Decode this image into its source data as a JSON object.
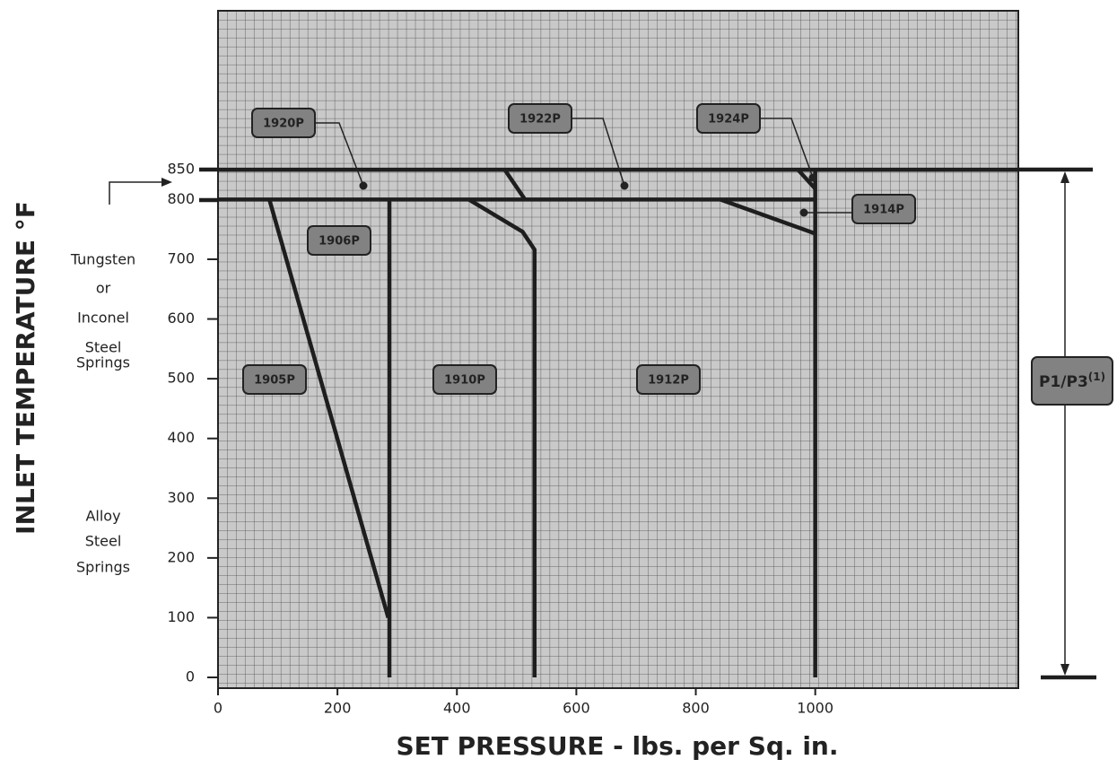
{
  "chart_data": {
    "type": "line",
    "x_label": "SET PRESSURE - lbs. per Sq. in.",
    "y_label": "INLET TEMPERATURE °F",
    "xlim": [
      0,
      1340
    ],
    "ylim": [
      -18,
      1116
    ],
    "xticks": [
      0,
      200,
      400,
      600,
      800,
      1000
    ],
    "yticks": [
      0,
      100,
      200,
      300,
      400,
      500,
      600,
      700,
      800,
      850
    ],
    "color": "#1e1e1e",
    "series": [
      {
        "x": [
          0,
          1340
        ],
        "values": [
          850,
          850
        ]
      },
      {
        "x": [
          0,
          1000
        ],
        "values": [
          800,
          800
        ]
      },
      {
        "x": [
          86,
          285
        ],
        "values": [
          800,
          100
        ]
      },
      {
        "x": [
          287,
          287
        ],
        "values": [
          0,
          800
        ]
      },
      {
        "x": [
          530,
          530,
          510,
          420
        ],
        "values": [
          0,
          716,
          746,
          800
        ]
      },
      {
        "x": [
          480,
          514
        ],
        "values": [
          850,
          800
        ]
      },
      {
        "x": [
          1000,
          1000
        ],
        "values": [
          0,
          850
        ]
      },
      {
        "x": [
          841,
          1000
        ],
        "values": [
          800,
          743
        ]
      },
      {
        "x": [
          971,
          1000
        ],
        "values": [
          850,
          818
        ]
      }
    ],
    "labels": [
      "1920P",
      "1922P",
      "1924P",
      "1914P",
      "1906P",
      "1905P",
      "1910P",
      "1912P"
    ],
    "spring_notes": [
      [
        "Tungsten",
        "or",
        "Inconel",
        "Steel",
        "Springs"
      ],
      [
        "Alloy",
        "Steel",
        "Springs"
      ]
    ],
    "dimension_label": {
      "text": "P1/P3",
      "superscript": "(1)"
    }
  }
}
